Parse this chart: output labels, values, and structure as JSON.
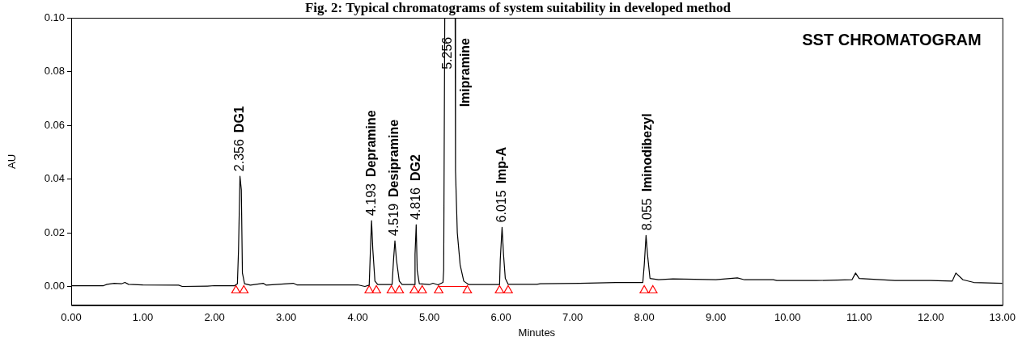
{
  "chart_data": {
    "type": "line",
    "title": "Fig. 2: Typical chromatograms of system suitability in developed method",
    "xlabel": "Minutes",
    "ylabel": "AU",
    "xlim": [
      0,
      13
    ],
    "xticks": [
      {
        "value": 0,
        "label": "0.00"
      },
      {
        "value": 1,
        "label": "1.00"
      },
      {
        "value": 2,
        "label": "2.00"
      },
      {
        "value": 3,
        "label": "3.00"
      },
      {
        "value": 4,
        "label": "4.00"
      },
      {
        "value": 5,
        "label": "5.00"
      },
      {
        "value": 6,
        "label": "6.00"
      },
      {
        "value": 7,
        "label": "7.00"
      },
      {
        "value": 8,
        "label": "8.00"
      },
      {
        "value": 9,
        "label": "9.00"
      },
      {
        "value": 10,
        "label": "10.00"
      },
      {
        "value": 11,
        "label": "11.00"
      },
      {
        "value": 12,
        "label": "12.00"
      },
      {
        "value": 13,
        "label": "13.00"
      }
    ],
    "ylim": [
      -0.007,
      0.1
    ],
    "yticks": [
      {
        "value": 0,
        "label": "0.00"
      },
      {
        "value": 0.02,
        "label": "0.02"
      },
      {
        "value": 0.04,
        "label": "0.04"
      },
      {
        "value": 0.06,
        "label": "0.06"
      },
      {
        "value": 0.08,
        "label": "0.08"
      },
      {
        "value": 0.1,
        "label": "0.10"
      }
    ],
    "series": [
      {
        "color": "#000000",
        "marker": "none",
        "x": [
          0,
          0.45,
          0.5,
          0.6,
          0.7,
          0.75,
          0.8,
          1.0,
          1.5,
          1.55,
          1.9,
          2.0,
          2.28,
          2.32,
          2.335,
          2.356,
          2.375,
          2.39,
          2.42,
          2.5,
          2.68,
          2.72,
          3.1,
          3.15,
          4.0,
          4.1,
          4.16,
          4.175,
          4.193,
          4.21,
          4.24,
          4.28,
          4.48,
          4.5,
          4.519,
          4.54,
          4.58,
          4.62,
          4.79,
          4.8,
          4.816,
          4.83,
          4.86,
          5.0,
          5.05,
          5.12,
          5.19,
          5.2,
          5.215,
          5.29,
          5.36,
          5.365,
          5.39,
          5.43,
          5.48,
          5.55,
          5.98,
          5.99,
          6.015,
          6.035,
          6.06,
          6.1,
          6.5,
          6.55,
          7.1,
          7.6,
          7.98,
          8.0,
          8.025,
          8.045,
          8.08,
          8.2,
          8.4,
          9.0,
          9.3,
          9.4,
          9.8,
          9.85,
          10.4,
          10.9,
          10.95,
          11.0,
          11.5,
          12.0,
          12.3,
          12.35,
          12.45,
          12.6,
          13.0
        ],
        "values": [
          0.0003,
          0.0003,
          0.0008,
          0.0012,
          0.001,
          0.0015,
          0.0008,
          0.0006,
          0.0005,
          0.0,
          0.0001,
          0.0003,
          0.0003,
          0.001,
          0.013,
          0.041,
          0.036,
          0.005,
          0.001,
          0.0005,
          0.0012,
          0.0005,
          0.0012,
          0.0006,
          0.0006,
          0.0,
          0.0005,
          0.012,
          0.0245,
          0.014,
          0.002,
          0.0007,
          0.0007,
          0.01,
          0.017,
          0.01,
          0.002,
          0.0007,
          0.0007,
          0.012,
          0.023,
          0.006,
          0.001,
          0.0007,
          0.0012,
          0.0006,
          0.0015,
          0.006,
          0.1,
          null,
          0.1,
          0.043,
          0.02,
          0.008,
          0.002,
          0.0007,
          0.0007,
          0.01,
          0.022,
          0.012,
          0.003,
          0.0008,
          0.0008,
          0.001,
          0.0012,
          0.0015,
          0.0015,
          0.008,
          0.019,
          0.012,
          0.003,
          0.0025,
          0.0028,
          0.0025,
          0.0032,
          0.0025,
          0.0025,
          0.0022,
          0.0022,
          0.0025,
          0.005,
          0.003,
          0.0022,
          0.0022,
          0.002,
          0.005,
          0.0025,
          0.0015,
          0.0012
        ]
      },
      {
        "type": "scatter",
        "color": "#ff0000",
        "marker": "triangle",
        "x": [
          2.3,
          2.41,
          4.16,
          4.26,
          4.47,
          4.58,
          4.79,
          4.9,
          5.13,
          5.53,
          5.98,
          6.1,
          8.0,
          8.12
        ],
        "values": [
          -0.0015,
          -0.0015,
          -0.0015,
          -0.0015,
          -0.0015,
          -0.0015,
          -0.0015,
          -0.0015,
          -0.0015,
          -0.0015,
          -0.0015,
          -0.0015,
          -0.0015,
          -0.0015
        ]
      },
      {
        "color": "#ff0000",
        "marker": "none",
        "x": [
          5.13,
          5.53
        ],
        "values": [
          0,
          0
        ]
      }
    ],
    "annotations": [
      {
        "text": "2.356",
        "x": 2.356,
        "y": 0.041
      },
      "DG1",
      {
        "text": "4.193",
        "x": 4.193,
        "y": 0.0245
      },
      "Depramine",
      {
        "text": "4.519",
        "x": 4.519,
        "y": 0.017
      },
      "Desipramine",
      {
        "text": "4.816",
        "x": 4.816,
        "y": 0.023
      },
      "DG2",
      {
        "text": "5.256",
        "x": 5.256,
        "y": 0.079
      },
      "Imipramine",
      {
        "text": "6.015",
        "x": 6.015,
        "y": 0.022
      },
      "Imp-A",
      {
        "text": "8.055",
        "x": 8.055,
        "y": 0.019
      },
      "Iminodibezyl",
      "SST CHROMATOGRAM"
    ]
  }
}
